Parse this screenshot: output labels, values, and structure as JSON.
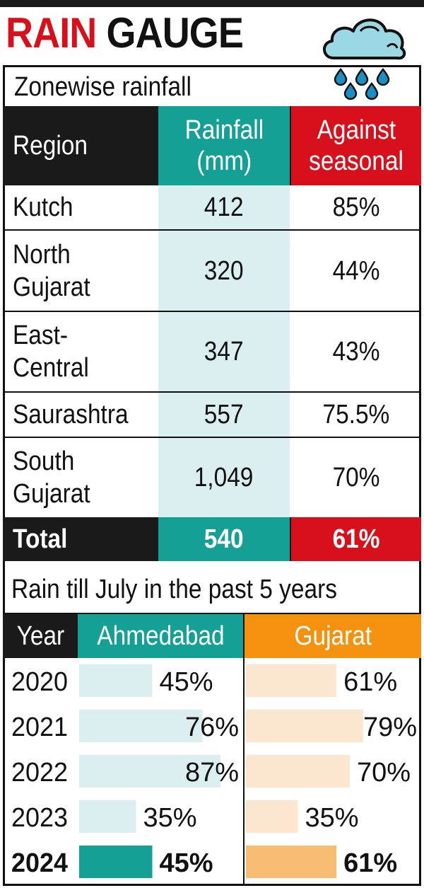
{
  "title": {
    "red": "RAIN",
    "black": "GAUGE"
  },
  "colors": {
    "red": "#d7101b",
    "teal": "#14a095",
    "teal_light": "#dceff0",
    "orange": "#f4920f",
    "orange_light": "#fde6cf",
    "black": "#1a1a1a"
  },
  "icons": [
    "cloud-rain-icon"
  ],
  "zonewise": {
    "subtitle": "Zonewise rainfall",
    "headers": {
      "region": "Region",
      "rainfall_l1": "Rainfall",
      "rainfall_l2": "(mm)",
      "against_l1": "Against",
      "against_l2": "seasonal"
    },
    "rows": [
      {
        "region_l1": "Kutch",
        "region_l2": "",
        "rainfall": "412",
        "against": "85%"
      },
      {
        "region_l1": "North",
        "region_l2": "Gujarat",
        "rainfall": "320",
        "against": "44%"
      },
      {
        "region_l1": "East-",
        "region_l2": "Central",
        "rainfall": "347",
        "against": "43%"
      },
      {
        "region_l1": "Saurashtra",
        "region_l2": "",
        "rainfall": "557",
        "against": "75.5%"
      },
      {
        "region_l1": "South",
        "region_l2": "Gujarat",
        "rainfall": "1,049",
        "against": "70%"
      }
    ],
    "total": {
      "label": "Total",
      "rainfall": "540",
      "against": "61%"
    }
  },
  "past5": {
    "subtitle": "Rain till July in the past 5 years",
    "headers": {
      "year": "Year",
      "ahmedabad": "Ahmedabad",
      "gujarat": "Gujarat"
    }
  },
  "chart_data": {
    "type": "bar",
    "title": "Rain till July in the past 5 years",
    "categories": [
      "2020",
      "2021",
      "2022",
      "2023",
      "2024"
    ],
    "series": [
      {
        "name": "Ahmedabad",
        "values": [
          45,
          76,
          87,
          35,
          45
        ],
        "labels": [
          "45%",
          "76%",
          "87%",
          "35%",
          "45%"
        ]
      },
      {
        "name": "Gujarat",
        "values": [
          61,
          79,
          70,
          35,
          61
        ],
        "labels": [
          "61%",
          "79%",
          "70%",
          "35%",
          "61%"
        ]
      }
    ],
    "xlabel": "Year",
    "ylabel": "",
    "ylim": [
      0,
      100
    ],
    "grid": false,
    "legend": "top"
  }
}
